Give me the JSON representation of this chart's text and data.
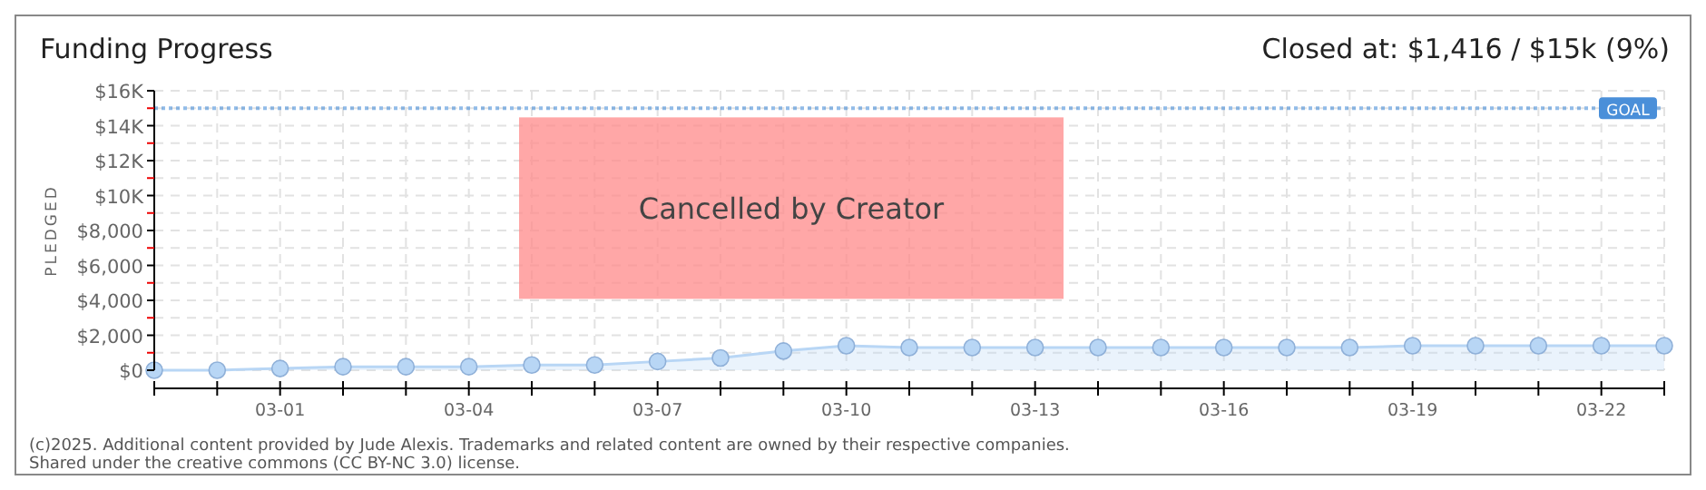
{
  "chart_data": {
    "type": "area",
    "title": "Funding Progress",
    "subtitle": "Closed at: $1,416 / $15k (9%)",
    "ylabel": "PLEDGED",
    "x": [
      "--02-27",
      "--02-28",
      "--03-01",
      "--03-02",
      "--03-03",
      "--03-04",
      "--03-05",
      "--03-06",
      "--03-07",
      "--03-08",
      "--03-09",
      "--03-10",
      "--03-11",
      "--03-12",
      "--03-13",
      "--03-14",
      "--03-15",
      "--03-16",
      "--03-17",
      "--03-18",
      "--03-19",
      "--03-20",
      "--03-21",
      "--03-22",
      "--03-23"
    ],
    "series": [
      {
        "color": "#b8d6f5",
        "values": [
          0,
          0,
          100,
          200,
          200,
          200,
          300,
          300,
          500,
          700,
          1100,
          1400,
          1300,
          1300,
          1300,
          1300,
          1300,
          1300,
          1300,
          1300,
          1400,
          1400,
          1400,
          1400,
          1400
        ]
      }
    ],
    "xlim": [
      "--02-27",
      "--03-23"
    ],
    "xticks": [
      {
        "value": "--02-27",
        "label": null
      },
      {
        "value": "--02-28",
        "label": null
      },
      {
        "value": "--03-01",
        "label": "03-01"
      },
      {
        "value": "--03-02",
        "label": null
      },
      {
        "value": "--03-03",
        "label": null
      },
      {
        "value": "--03-04",
        "label": "03-04"
      },
      {
        "value": "--03-05",
        "label": null
      },
      {
        "value": "--03-06",
        "label": null
      },
      {
        "value": "--03-07",
        "label": "03-07"
      },
      {
        "value": "--03-08",
        "label": null
      },
      {
        "value": "--03-09",
        "label": null
      },
      {
        "value": "--03-10",
        "label": "03-10"
      },
      {
        "value": "--03-11",
        "label": null
      },
      {
        "value": "--03-12",
        "label": null
      },
      {
        "value": "--03-13",
        "label": "03-13"
      },
      {
        "value": "--03-14",
        "label": null
      },
      {
        "value": "--03-15",
        "label": null
      },
      {
        "value": "--03-16",
        "label": "03-16"
      },
      {
        "value": "--03-17",
        "label": null
      },
      {
        "value": "--03-18",
        "label": null
      },
      {
        "value": "--03-19",
        "label": "03-19"
      },
      {
        "value": "--03-20",
        "label": null
      },
      {
        "value": "--03-21",
        "label": null
      },
      {
        "value": "--03-22",
        "label": "03-22"
      },
      {
        "value": "--03-23",
        "label": null
      }
    ],
    "ylim": [
      0,
      16000
    ],
    "yticks": [
      {
        "value": 0,
        "label": "$0"
      },
      {
        "value": 1000,
        "label": null
      },
      {
        "value": 2000,
        "label": "$2,000"
      },
      {
        "value": 3000,
        "label": null
      },
      {
        "value": 4000,
        "label": "$4,000"
      },
      {
        "value": 5000,
        "label": null
      },
      {
        "value": 6000,
        "label": "$6,000"
      },
      {
        "value": 7000,
        "label": null
      },
      {
        "value": 8000,
        "label": "$8,000"
      },
      {
        "value": 9000,
        "label": null
      },
      {
        "value": 10000,
        "label": "$10K"
      },
      {
        "value": 11000,
        "label": null
      },
      {
        "value": 12000,
        "label": "$12K"
      },
      {
        "value": 13000,
        "label": null
      },
      {
        "value": 14000,
        "label": "$14K"
      },
      {
        "value": 15000,
        "label": null
      },
      {
        "value": 16000,
        "label": "$16K"
      }
    ],
    "ref_lines": [
      {
        "axis": "y",
        "value": 15000,
        "label": "GOAL",
        "color": "#4a8fd9",
        "line_style": "dotted"
      }
    ],
    "annotations": [
      "Cancelled by Creator",
      "(c)2025. Additional content provided by Jude Alexis. Trademarks and related content are owned by their respective companies.",
      "Shared under the creative commons (CC BY-NC 3.0) license."
    ],
    "grid": true,
    "marker": "circle"
  }
}
